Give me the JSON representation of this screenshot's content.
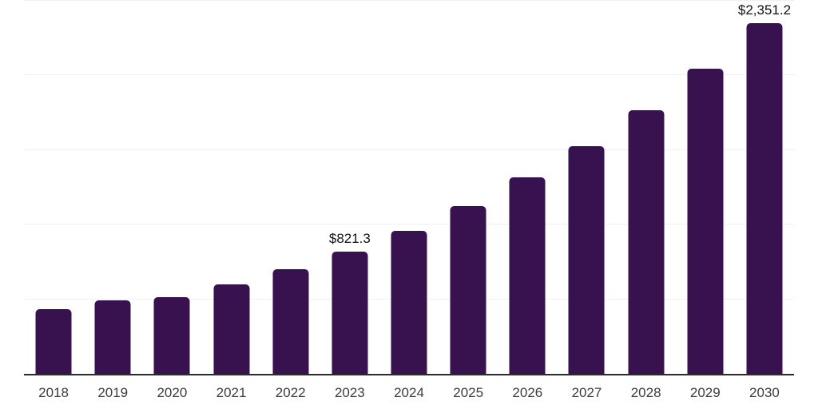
{
  "chart_data": {
    "type": "bar",
    "title": "",
    "xlabel": "",
    "ylabel": "",
    "categories": [
      "2018",
      "2019",
      "2020",
      "2021",
      "2022",
      "2023",
      "2024",
      "2025",
      "2026",
      "2027",
      "2028",
      "2029",
      "2030"
    ],
    "values": [
      436,
      492,
      514,
      600,
      704,
      821.3,
      958,
      1124,
      1317,
      1526,
      1766,
      2045,
      2351.2
    ],
    "bar_labels": [
      "",
      "",
      "",
      "",
      "",
      "$821.3",
      "",
      "",
      "",
      "",
      "",
      "",
      "$2,351.2"
    ],
    "ylim": [
      0,
      2500
    ],
    "gridline_interval": 500,
    "grid": "horizontal-only",
    "y_axis_labels_visible": false,
    "legend_position": "none",
    "currency_prefix": "$"
  },
  "style": {
    "bar_color": "#38124E",
    "axis_color": "#2b2b2b",
    "gridline_color": "#f0f0f0",
    "tick_label_color": "#3d3d3d",
    "data_label_color": "#111111",
    "background_color": "#ffffff"
  }
}
